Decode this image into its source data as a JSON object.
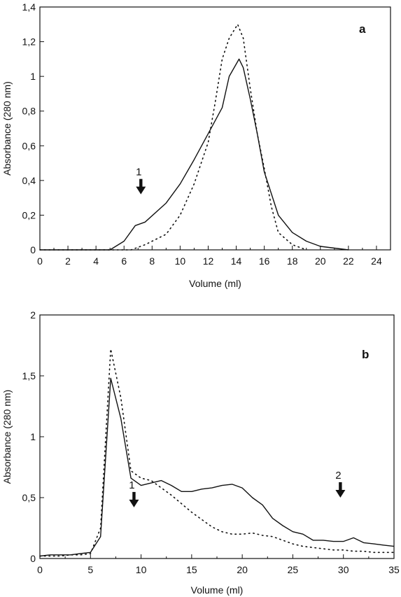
{
  "chart_data": [
    {
      "type": "line",
      "panel_label": "a",
      "xlabel": "Volume (ml)",
      "ylabel": "Absorbance (280 nm)",
      "xlim": [
        0,
        25
      ],
      "ylim": [
        0,
        1.4
      ],
      "x_ticks": [
        "0",
        "2",
        "4",
        "6",
        "8",
        "10",
        "12",
        "14",
        "16",
        "18",
        "20",
        "22",
        "24"
      ],
      "y_ticks": [
        "0",
        "0,2",
        "0,4",
        "0,6",
        "0,8",
        "1",
        "1,2",
        "1,4"
      ],
      "grid": false,
      "series": [
        {
          "style": "solid",
          "x": [
            0,
            5,
            6,
            6.8,
            7.5,
            9,
            10,
            11,
            12,
            13,
            13.5,
            14.2,
            14.5,
            15,
            15.5,
            16,
            17,
            18,
            19,
            20,
            21,
            22
          ],
          "y": [
            0,
            0,
            0.05,
            0.14,
            0.16,
            0.27,
            0.38,
            0.52,
            0.67,
            0.82,
            1.0,
            1.1,
            1.05,
            0.87,
            0.67,
            0.45,
            0.2,
            0.1,
            0.05,
            0.02,
            0.01,
            0
          ]
        },
        {
          "style": "dotted",
          "x": [
            0,
            6.5,
            7.5,
            9,
            10,
            11,
            12,
            12.5,
            13,
            13.5,
            14.1,
            14.5,
            15,
            15.5,
            16,
            16.5,
            17,
            18,
            19
          ],
          "y": [
            0,
            0,
            0.03,
            0.09,
            0.2,
            0.38,
            0.62,
            0.85,
            1.1,
            1.22,
            1.3,
            1.22,
            0.93,
            0.67,
            0.47,
            0.25,
            0.1,
            0.03,
            0
          ]
        }
      ],
      "annotations": [
        {
          "text": "1",
          "type": "down-arrow",
          "x": 7.2,
          "y": 0.32
        }
      ]
    },
    {
      "type": "line",
      "panel_label": "b",
      "xlabel": "Volume (ml)",
      "ylabel": "Absorbance (280 nm)",
      "xlim": [
        0,
        35
      ],
      "ylim": [
        0,
        2
      ],
      "x_ticks": [
        "0",
        "5",
        "10",
        "15",
        "20",
        "25",
        "30",
        "35"
      ],
      "y_ticks": [
        "0",
        "0,5",
        "1",
        "1,5",
        "2"
      ],
      "grid": false,
      "series": [
        {
          "style": "solid",
          "x": [
            0,
            1,
            2,
            3,
            4,
            5,
            6,
            7,
            8,
            9,
            10,
            11,
            12,
            13,
            14,
            15,
            16,
            17,
            18,
            19,
            20,
            21,
            22,
            23,
            24,
            25,
            26,
            27,
            28,
            29,
            30,
            31,
            32,
            33,
            34,
            35
          ],
          "y": [
            0.02,
            0.03,
            0.03,
            0.03,
            0.04,
            0.05,
            0.18,
            1.48,
            1.15,
            0.66,
            0.6,
            0.62,
            0.64,
            0.6,
            0.55,
            0.55,
            0.57,
            0.58,
            0.6,
            0.61,
            0.58,
            0.5,
            0.44,
            0.33,
            0.27,
            0.22,
            0.2,
            0.15,
            0.15,
            0.14,
            0.14,
            0.17,
            0.13,
            0.12,
            0.11,
            0.1
          ]
        },
        {
          "style": "dotted",
          "x": [
            0,
            1,
            2,
            3,
            4,
            5,
            6,
            7,
            8,
            9,
            10,
            11,
            12,
            13,
            14,
            15,
            16,
            17,
            18,
            19,
            20,
            21,
            22,
            23,
            24,
            25,
            26,
            27,
            28,
            29,
            30,
            31,
            32,
            33,
            34,
            35
          ],
          "y": [
            0.02,
            0.02,
            0.02,
            0.03,
            0.03,
            0.04,
            0.25,
            1.72,
            1.32,
            0.72,
            0.66,
            0.64,
            0.58,
            0.52,
            0.45,
            0.38,
            0.32,
            0.26,
            0.22,
            0.2,
            0.2,
            0.21,
            0.19,
            0.18,
            0.15,
            0.12,
            0.1,
            0.09,
            0.08,
            0.07,
            0.07,
            0.06,
            0.06,
            0.05,
            0.05,
            0.05
          ]
        }
      ],
      "annotations": [
        {
          "text": "1",
          "type": "down-arrow",
          "x": 9.3,
          "y": 0.42
        },
        {
          "text": "2",
          "type": "down-arrow",
          "x": 29.7,
          "y": 0.5
        }
      ]
    }
  ]
}
